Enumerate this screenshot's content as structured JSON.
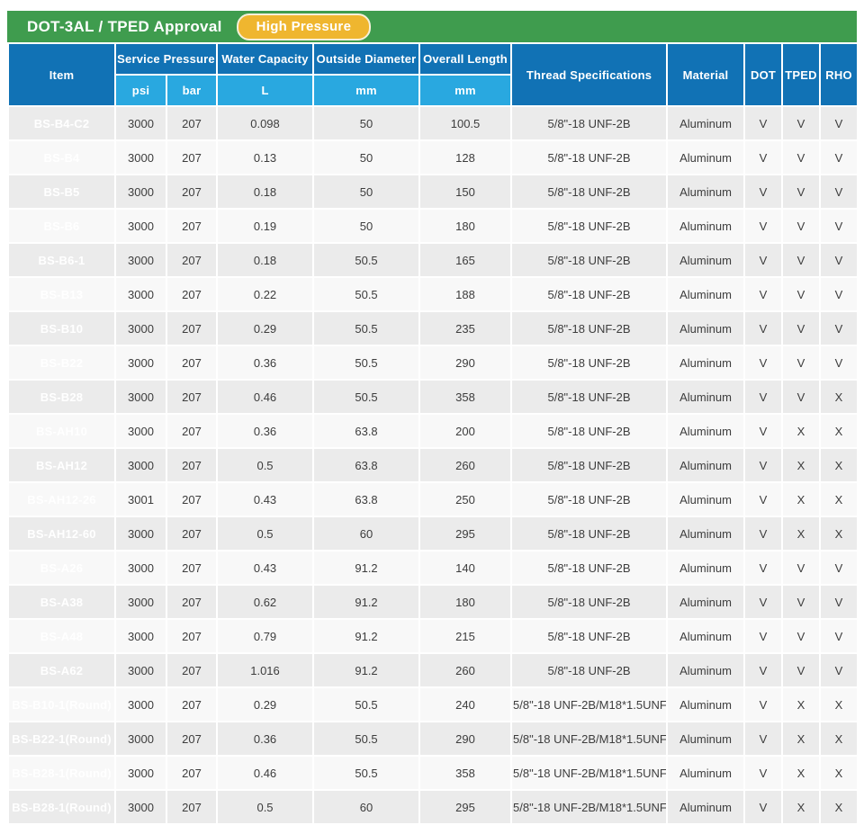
{
  "header": {
    "title": "DOT-3AL / TPED Approval",
    "badge": "High Pressure"
  },
  "colors": {
    "title_bar_green": "#3f9c4e",
    "badge_yellow": "#efb62f",
    "header_dark_blue": "#1172b5",
    "header_light_blue": "#29a8e0",
    "row_gray": "#ebebeb",
    "row_light": "#f8f8f8",
    "grid_white": "#ffffff",
    "text_dark": "#3d3d3d"
  },
  "table": {
    "headers": {
      "item": "Item",
      "service_pressure": "Service Pressure",
      "water_capacity": "Water Capacity",
      "outside_diameter": "Outside Diameter",
      "overall_length": "Overall Length",
      "thread": "Thread Specifications",
      "material": "Material",
      "dot": "DOT",
      "tped": "TPED",
      "rho": "RHO"
    },
    "subheaders": {
      "psi": "psi",
      "bar": "bar",
      "l": "L",
      "od_mm": "mm",
      "ol_mm": "mm"
    },
    "column_keys": [
      "item",
      "psi",
      "bar",
      "water-capacity-l",
      "outside-diameter-mm",
      "overall-length-mm",
      "thread-specifications",
      "material",
      "dot",
      "tped",
      "rho"
    ],
    "rows": [
      [
        "BS-B4-C2",
        "3000",
        "207",
        "0.098",
        "50",
        "100.5",
        "5/8\"-18 UNF-2B",
        "Aluminum",
        "V",
        "V",
        "V"
      ],
      [
        "BS-B4",
        "3000",
        "207",
        "0.13",
        "50",
        "128",
        "5/8\"-18 UNF-2B",
        "Aluminum",
        "V",
        "V",
        "V"
      ],
      [
        "BS-B5",
        "3000",
        "207",
        "0.18",
        "50",
        "150",
        "5/8\"-18 UNF-2B",
        "Aluminum",
        "V",
        "V",
        "V"
      ],
      [
        "BS-B6",
        "3000",
        "207",
        "0.19",
        "50",
        "180",
        "5/8\"-18 UNF-2B",
        "Aluminum",
        "V",
        "V",
        "V"
      ],
      [
        "BS-B6-1",
        "3000",
        "207",
        "0.18",
        "50.5",
        "165",
        "5/8\"-18 UNF-2B",
        "Aluminum",
        "V",
        "V",
        "V"
      ],
      [
        "BS-B13",
        "3000",
        "207",
        "0.22",
        "50.5",
        "188",
        "5/8\"-18 UNF-2B",
        "Aluminum",
        "V",
        "V",
        "V"
      ],
      [
        "BS-B10",
        "3000",
        "207",
        "0.29",
        "50.5",
        "235",
        "5/8\"-18 UNF-2B",
        "Aluminum",
        "V",
        "V",
        "V"
      ],
      [
        "BS-B22",
        "3000",
        "207",
        "0.36",
        "50.5",
        "290",
        "5/8\"-18 UNF-2B",
        "Aluminum",
        "V",
        "V",
        "V"
      ],
      [
        "BS-B28",
        "3000",
        "207",
        "0.46",
        "50.5",
        "358",
        "5/8\"-18 UNF-2B",
        "Aluminum",
        "V",
        "V",
        "X"
      ],
      [
        "BS-AH10",
        "3000",
        "207",
        "0.36",
        "63.8",
        "200",
        "5/8\"-18 UNF-2B",
        "Aluminum",
        "V",
        "X",
        "X"
      ],
      [
        "BS-AH12",
        "3000",
        "207",
        "0.5",
        "63.8",
        "260",
        "5/8\"-18 UNF-2B",
        "Aluminum",
        "V",
        "X",
        "X"
      ],
      [
        "BS-AH12-26",
        "3001",
        "207",
        "0.43",
        "63.8",
        "250",
        "5/8\"-18 UNF-2B",
        "Aluminum",
        "V",
        "X",
        "X"
      ],
      [
        "BS-AH12-60",
        "3000",
        "207",
        "0.5",
        "60",
        "295",
        "5/8\"-18 UNF-2B",
        "Aluminum",
        "V",
        "X",
        "X"
      ],
      [
        "BS-A26",
        "3000",
        "207",
        "0.43",
        "91.2",
        "140",
        "5/8\"-18 UNF-2B",
        "Aluminum",
        "V",
        "V",
        "V"
      ],
      [
        "BS-A38",
        "3000",
        "207",
        "0.62",
        "91.2",
        "180",
        "5/8\"-18 UNF-2B",
        "Aluminum",
        "V",
        "V",
        "V"
      ],
      [
        "BS-A48",
        "3000",
        "207",
        "0.79",
        "91.2",
        "215",
        "5/8\"-18 UNF-2B",
        "Aluminum",
        "V",
        "V",
        "V"
      ],
      [
        "BS-A62",
        "3000",
        "207",
        "1.016",
        "91.2",
        "260",
        "5/8\"-18 UNF-2B",
        "Aluminum",
        "V",
        "V",
        "V"
      ],
      [
        "BS-B10-1(Round)",
        "3000",
        "207",
        "0.29",
        "50.5",
        "240",
        "5/8\"-18 UNF-2B/M18*1.5UNF",
        "Aluminum",
        "V",
        "X",
        "X"
      ],
      [
        "BS-B22-1(Round)",
        "3000",
        "207",
        "0.36",
        "50.5",
        "290",
        "5/8\"-18 UNF-2B/M18*1.5UNF",
        "Aluminum",
        "V",
        "X",
        "X"
      ],
      [
        "BS-B28-1(Round)",
        "3000",
        "207",
        "0.46",
        "50.5",
        "358",
        "5/8\"-18 UNF-2B/M18*1.5UNF",
        "Aluminum",
        "V",
        "X",
        "X"
      ],
      [
        "BS-B28-1(Round)",
        "3000",
        "207",
        "0.5",
        "60",
        "295",
        "5/8\"-18 UNF-2B/M18*1.5UNF",
        "Aluminum",
        "V",
        "X",
        "X"
      ]
    ]
  }
}
